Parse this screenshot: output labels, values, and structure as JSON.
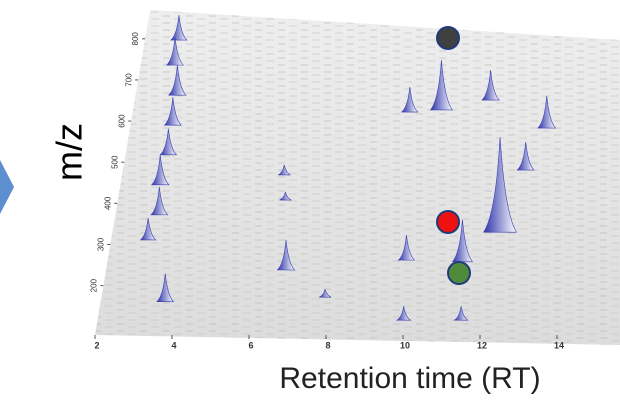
{
  "chart_data": {
    "type": "peak-map-3d",
    "x_label": "Retention time (RT)",
    "y_label": "m/z",
    "xlim": [
      2,
      15.2
    ],
    "xticks": [
      2,
      4,
      6,
      8,
      10,
      12,
      14
    ],
    "ylim": [
      80,
      870
    ],
    "yticks": [
      200,
      300,
      400,
      500,
      600,
      700,
      800
    ],
    "color": "#3b3fb0",
    "peaks": [
      {
        "rt": 10.8,
        "mz": 627,
        "intensity": 50
      },
      {
        "rt": 9.9,
        "mz": 622,
        "intensity": 25
      },
      {
        "rt": 12.2,
        "mz": 651,
        "intensity": 30
      },
      {
        "rt": 13.8,
        "mz": 583,
        "intensity": 32
      },
      {
        "rt": 13.2,
        "mz": 481,
        "intensity": 28
      },
      {
        "rt": 12.5,
        "mz": 330,
        "intensity": 95
      },
      {
        "rt": 6.8,
        "mz": 238,
        "intensity": 30
      },
      {
        "rt": 11.5,
        "mz": 258,
        "intensity": 42
      },
      {
        "rt": 10.0,
        "mz": 262,
        "intensity": 25
      },
      {
        "rt": 10.0,
        "mz": 116,
        "intensity": 14
      },
      {
        "rt": 3.7,
        "mz": 161,
        "intensity": 28
      },
      {
        "rt": 11.5,
        "mz": 116,
        "intensity": 14
      },
      {
        "rt": 7.9,
        "mz": 172,
        "intensity": 8
      },
      {
        "rt": 6.6,
        "mz": 408,
        "intensity": 8
      },
      {
        "rt": 6.5,
        "mz": 469,
        "intensity": 10
      },
      {
        "rt": 3.0,
        "mz": 797,
        "intensity": 25
      },
      {
        "rt": 3.0,
        "mz": 736,
        "intensity": 28
      },
      {
        "rt": 3.2,
        "mz": 663,
        "intensity": 30
      },
      {
        "rt": 3.2,
        "mz": 590,
        "intensity": 28
      },
      {
        "rt": 3.2,
        "mz": 518,
        "intensity": 26
      },
      {
        "rt": 3.1,
        "mz": 445,
        "intensity": 30
      },
      {
        "rt": 3.2,
        "mz": 372,
        "intensity": 28
      },
      {
        "rt": 3.0,
        "mz": 311,
        "intensity": 22
      }
    ]
  }
}
